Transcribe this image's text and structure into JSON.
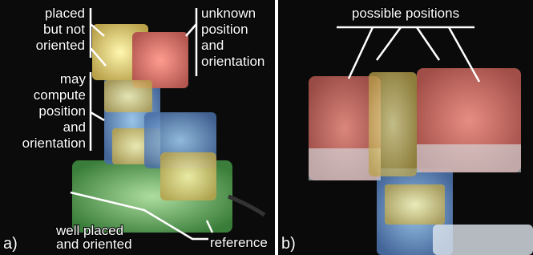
{
  "panels": [
    {
      "label": "a)",
      "annotations": [
        {
          "lines": [
            "placed",
            "but not",
            "oriented"
          ]
        },
        {
          "lines": [
            "unknown",
            "position",
            "and",
            "orientation"
          ]
        },
        {
          "lines": [
            "may",
            "compute",
            "position",
            "and",
            "orientation"
          ]
        },
        {
          "lines": [
            "well placed",
            "and oriented"
          ]
        },
        {
          "lines": [
            "reference"
          ]
        }
      ]
    },
    {
      "label": "b)",
      "annotations": [
        {
          "lines": [
            "possible positions"
          ]
        }
      ]
    }
  ]
}
